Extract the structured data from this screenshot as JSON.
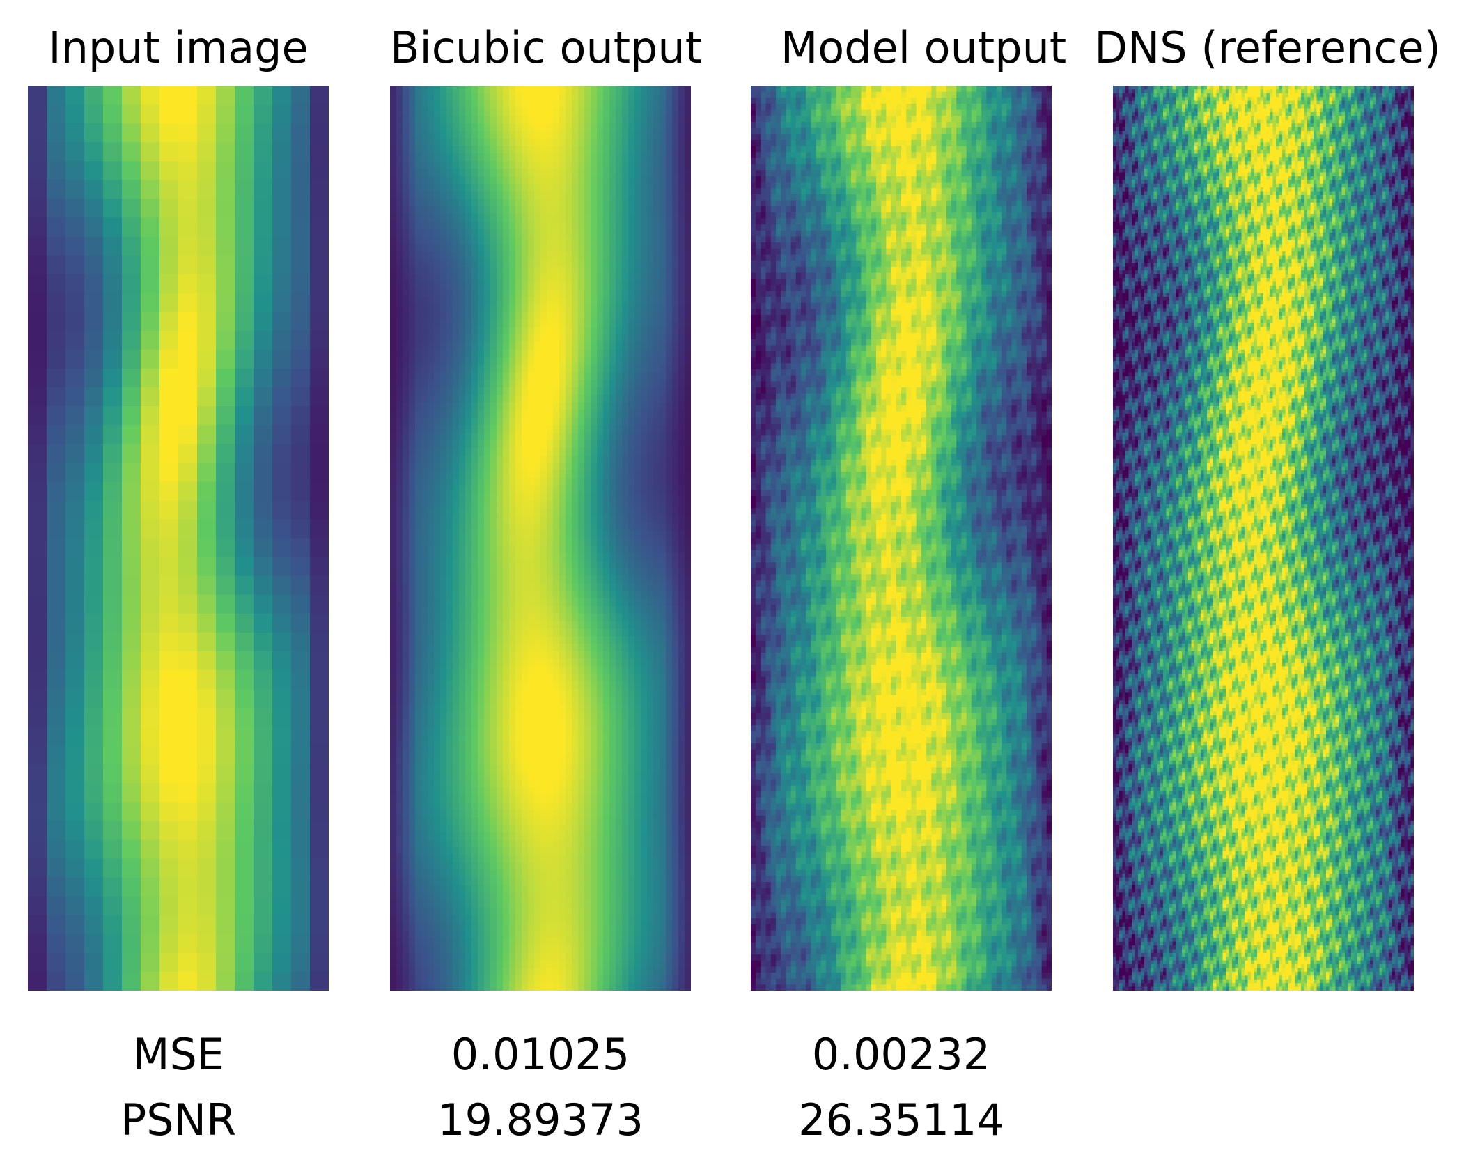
{
  "figure": {
    "panels": [
      {
        "id": "input",
        "title": "Input image",
        "icon": "low-resolution-flow-field"
      },
      {
        "id": "bicubic",
        "title": "Bicubic output",
        "icon": "bicubic-upsampled-flow-field"
      },
      {
        "id": "model",
        "title": "Model output",
        "icon": "super-resolved-flow-field"
      },
      {
        "id": "dns",
        "title": "DNS (reference)",
        "icon": "dns-reference-flow-field"
      }
    ],
    "colormap": "viridis",
    "colors": [
      "#440154",
      "#3b528b",
      "#21918c",
      "#5ec962",
      "#fde725"
    ]
  },
  "metrics": {
    "mse_label": "MSE",
    "psnr_label": "PSNR",
    "bicubic": {
      "mse": "0.01025",
      "psnr": "19.89373"
    },
    "model": {
      "mse": "0.00232",
      "psnr": "26.35114"
    }
  }
}
